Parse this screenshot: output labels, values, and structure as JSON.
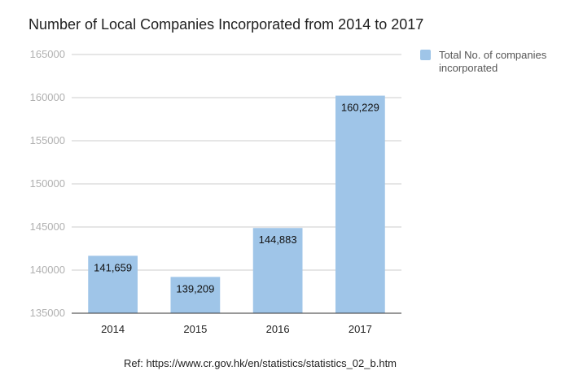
{
  "chart_data": {
    "type": "bar",
    "title": "Number of Local Companies Incorporated from 2014 to 2017",
    "categories": [
      "2014",
      "2015",
      "2016",
      "2017"
    ],
    "series": [
      {
        "name": "Total No. of companies incorporated",
        "values": [
          141659,
          139209,
          144883,
          160229
        ],
        "data_labels": [
          "141,659",
          "139,209",
          "144,883",
          "160,229"
        ],
        "color": "#9fc5e8"
      }
    ],
    "y_ticks": [
      "165000",
      "160000",
      "155000",
      "150000",
      "145000",
      "140000",
      "135000"
    ],
    "ylim": [
      135000,
      165000
    ],
    "xlabel": "",
    "ylabel": "",
    "grid": true,
    "legend_position": "right"
  },
  "footer": {
    "source": "Ref: https://www.cr.gov.hk/en/statistics/statistics_02_b.htm"
  },
  "colors": {
    "bar": "#9fc5e8",
    "grid": "#cccccc",
    "tick_label": "#b0b0b0",
    "axis": "#333333"
  }
}
